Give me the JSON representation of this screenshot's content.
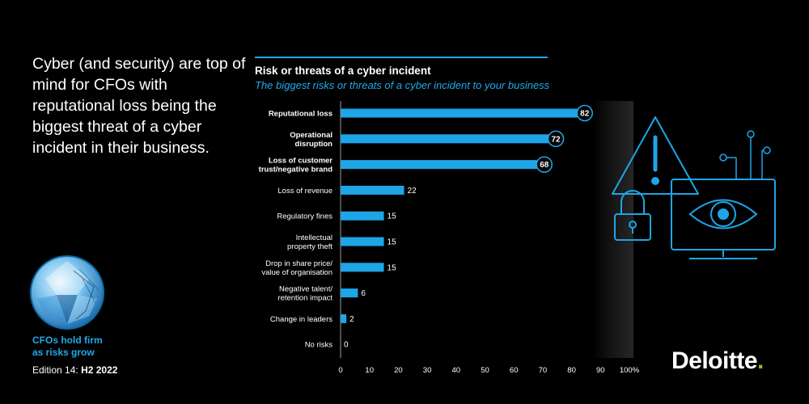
{
  "headline": "Cyber (and security) are top of mind for CFOs with reputational loss being the biggest threat of a cyber incident in their business.",
  "report": {
    "title_line1": "CFOs hold firm",
    "title_line2": "as risks grow",
    "edition_prefix": "Edition 14:",
    "edition_period": "H2 2022"
  },
  "logo": {
    "text": "Deloitte",
    "dot": "."
  },
  "colors": {
    "accent": "#21a9e9",
    "bar": "#1ea5e6",
    "badge_border": "#0c6fa8",
    "background": "#000000",
    "logo_dot": "#86bc25"
  },
  "icons": [
    "warning-triangle-icon",
    "padlock-icon",
    "monitor-eye-icon",
    "circuit-lines-icon",
    "gem-badge-icon"
  ],
  "chart_data": {
    "type": "bar",
    "orientation": "horizontal",
    "title": "Risk or threats of a cyber incident",
    "subtitle": "The biggest risks or threats of a cyber incident to your business",
    "categories": [
      [
        "Reputational loss"
      ],
      [
        "Operational",
        "disruption"
      ],
      [
        "Loss of customer",
        "trust/negative brand"
      ],
      [
        "Loss of revenue"
      ],
      [
        "Regulatory fines"
      ],
      [
        "Intellectual",
        "property theft"
      ],
      [
        "Drop in share price/",
        "value of organisation"
      ],
      [
        "Negative talent/",
        "retention impact"
      ],
      [
        "Change in leaders"
      ],
      [
        "No risks"
      ]
    ],
    "values": [
      82,
      72,
      68,
      22,
      15,
      15,
      15,
      6,
      2,
      0
    ],
    "highlighted": [
      true,
      true,
      true,
      false,
      false,
      false,
      false,
      false,
      false,
      false
    ],
    "xlim": [
      0,
      100
    ],
    "xticks": [
      "0",
      "10",
      "20",
      "30",
      "40",
      "50",
      "60",
      "70",
      "80",
      "90",
      "100%"
    ],
    "grid": false
  }
}
